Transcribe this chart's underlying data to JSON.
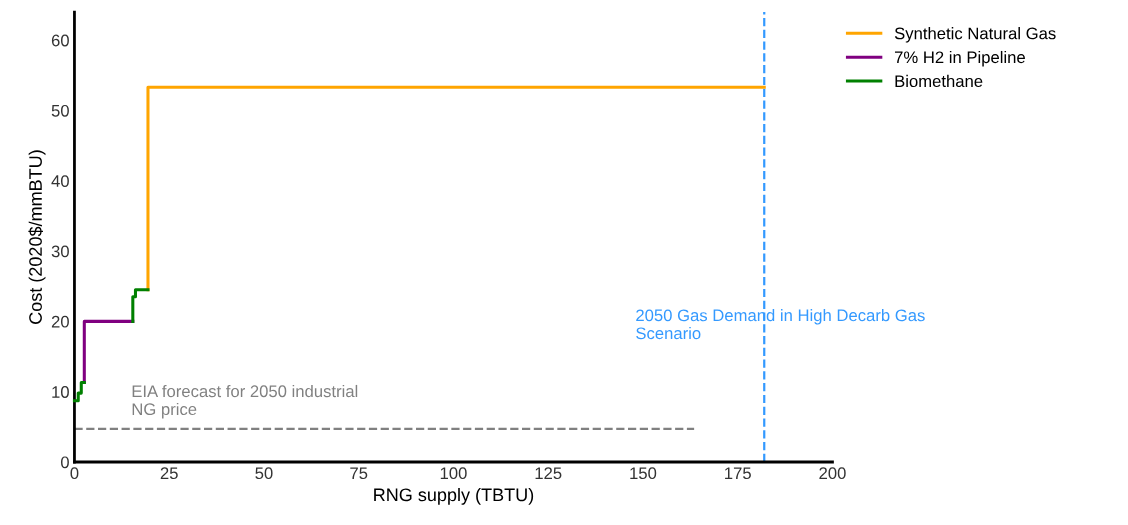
{
  "chart_data": {
    "type": "step",
    "xlabel": "RNG supply (TBTU)",
    "ylabel": "Cost (2020$/mmBTU)",
    "series": [
      {
        "name": "Synthetic Natural Gas",
        "color": "#ffa500",
        "x": [
          19.4,
          19.4,
          182
        ],
        "values": [
          24.5,
          53.3,
          53.3
        ]
      },
      {
        "name": "7% H2 in Pipeline",
        "color": "#800080",
        "x": [
          2.6,
          2.6,
          15.4
        ],
        "values": [
          11.3,
          20,
          20
        ]
      },
      {
        "name": "Biomethane",
        "color": "#008000",
        "x": [
          15.4,
          15.4,
          16.1,
          19.4
        ],
        "values": [
          20,
          23.5,
          24.5,
          24.5
        ]
      },
      {
        "color": "#008000",
        "x": [
          0,
          1,
          1.8,
          2.6
        ],
        "values": [
          8.7,
          9.8,
          11.3,
          11.3
        ]
      },
      {
        "type": "line",
        "color": "#808080",
        "line_style": "dashed",
        "x": [
          0,
          163.5
        ],
        "values": [
          4.7,
          4.7
        ]
      }
    ],
    "ref_lines": [
      {
        "axis": "x",
        "value": 182,
        "label": "2050 Gas Demand in High Decarb Gas Scenario",
        "color": "#3399ff",
        "line_style": "dashed"
      }
    ],
    "annotations": [
      {
        "text": "EIA forecast for 2050 industrial NG price",
        "x": 15,
        "y": 4.7
      }
    ],
    "xlim": [
      0,
      200
    ],
    "xticks": [
      0,
      25,
      50,
      75,
      100,
      125,
      150,
      175,
      200
    ],
    "ylim": [
      0,
      64
    ],
    "yticks": [
      0,
      10,
      20,
      30,
      40,
      50,
      60
    ],
    "grid": false,
    "legend": "top right"
  }
}
